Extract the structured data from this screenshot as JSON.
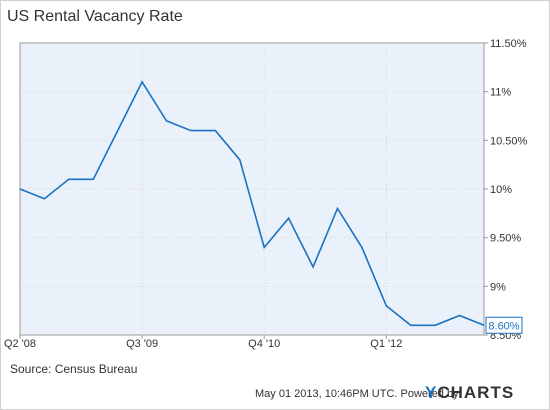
{
  "title": "US Rental Vacancy Rate",
  "source": "Source: Census Bureau",
  "footer": {
    "timestamp": "May 01 2013, 10:46PM UTC. Powered by",
    "brand_y": "Y",
    "brand_rest": "CHARTS"
  },
  "chart_data": {
    "type": "line",
    "title": "US Rental Vacancy Rate",
    "xlabel": "",
    "ylabel": "",
    "x": [
      "Q2 '08",
      "Q3 '08",
      "Q4 '08",
      "Q1 '09",
      "Q2 '09",
      "Q3 '09",
      "Q4 '09",
      "Q1 '10",
      "Q2 '10",
      "Q3 '10",
      "Q4 '10",
      "Q1 '11",
      "Q2 '11",
      "Q3 '11",
      "Q4 '11",
      "Q1 '12",
      "Q2 '12",
      "Q3 '12",
      "Q4 '12",
      "Q1 '13"
    ],
    "values": [
      10.0,
      9.9,
      10.1,
      10.1,
      10.6,
      11.1,
      10.7,
      10.6,
      10.6,
      10.3,
      9.4,
      9.7,
      9.2,
      9.8,
      9.4,
      8.8,
      8.6,
      8.6,
      8.7,
      8.6
    ],
    "ylim": [
      8.5,
      11.5
    ],
    "y_ticks": [
      8.5,
      9.0,
      9.5,
      10.0,
      10.5,
      11.0,
      11.5
    ],
    "y_tick_labels": [
      "8.50%",
      "9%",
      "9.50%",
      "10%",
      "10.50%",
      "11%",
      "11.50%"
    ],
    "x_tick_indices": [
      0,
      5,
      10,
      15
    ],
    "x_tick_labels": [
      "Q2  '08",
      "Q3  '09",
      "Q4  '10",
      "Q1  '12"
    ],
    "last_value_label": "8.60%",
    "grid": true,
    "colors": {
      "line": "#1a73c2",
      "plot_bg": "#eaf1fb",
      "grid": "#d6d6d6",
      "axis": "#9a9a9a"
    }
  }
}
